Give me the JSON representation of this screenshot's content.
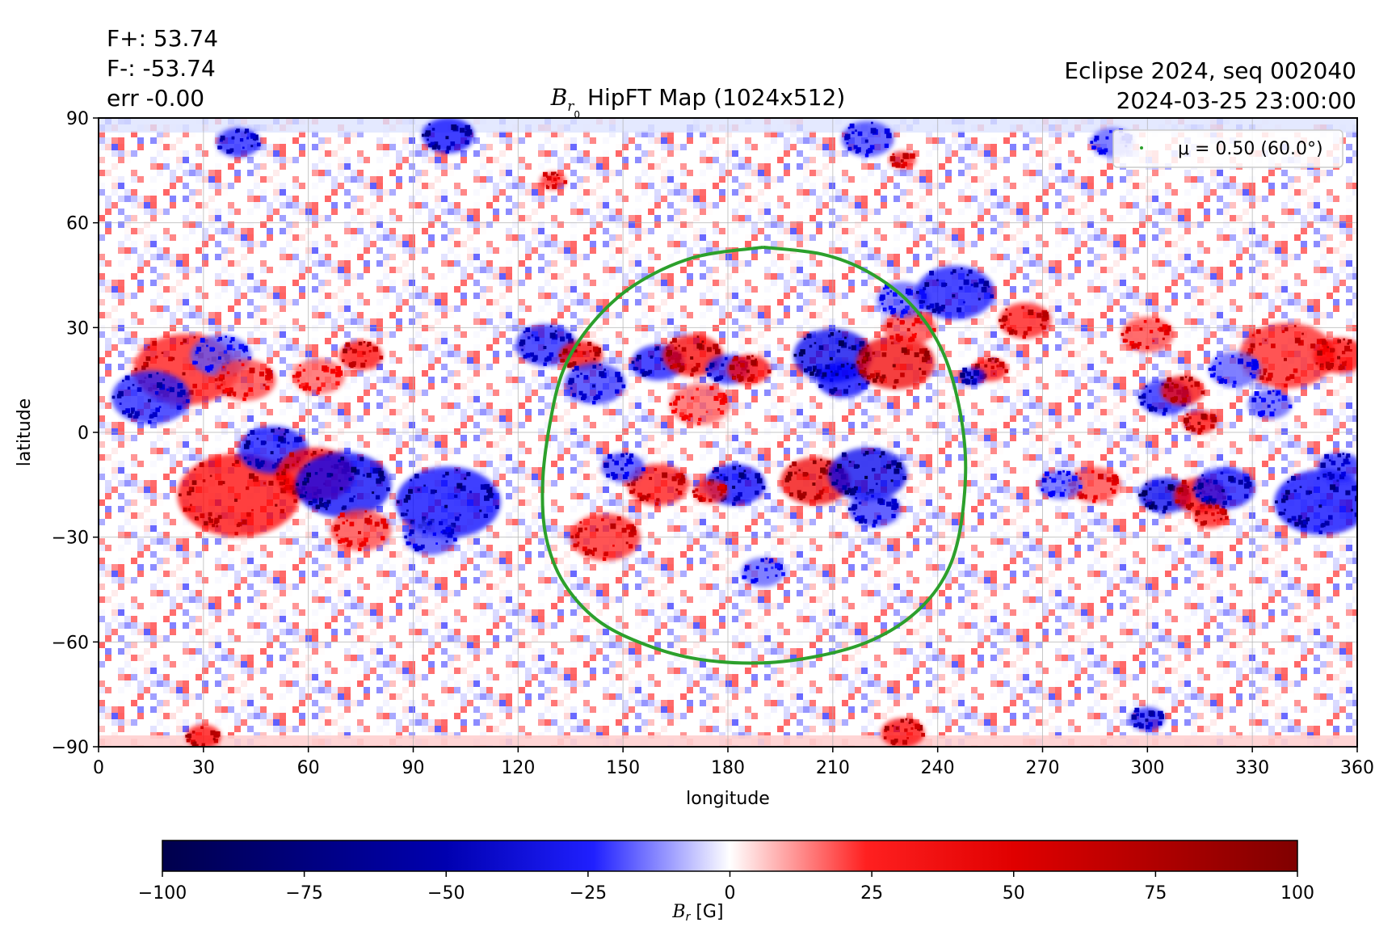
{
  "header": {
    "stats": [
      "F+: 53.74",
      "F-: -53.74",
      "err -0.00"
    ],
    "run_info": [
      "Eclipse 2024, seq 002040",
      "2024-03-25 23:00:00"
    ],
    "title_symbol": "B",
    "title_sub": "r",
    "title_sub2": "0",
    "title_text": " HipFT Map (1024x512)"
  },
  "chart_data": {
    "type": "heatmap",
    "xlabel": "longitude",
    "ylabel": "latitude",
    "xlim": [
      0,
      360
    ],
    "ylim": [
      -90,
      90
    ],
    "xticks": [
      0,
      30,
      60,
      90,
      120,
      150,
      180,
      210,
      240,
      270,
      300,
      330,
      360
    ],
    "yticks": [
      -90,
      -60,
      -30,
      0,
      30,
      60,
      90
    ],
    "grid": true,
    "legend": {
      "placement": "top-right",
      "label": "μ = 0.50 (60.0°)",
      "color": "#2ca02c"
    },
    "mu_contour": {
      "color": "#2ca02c",
      "points": [
        [
          190,
          53
        ],
        [
          207,
          51
        ],
        [
          220,
          46
        ],
        [
          232,
          37
        ],
        [
          241,
          24
        ],
        [
          246,
          8
        ],
        [
          248,
          -10
        ],
        [
          246,
          -30
        ],
        [
          241,
          -43
        ],
        [
          232,
          -53
        ],
        [
          220,
          -60
        ],
        [
          206,
          -64
        ],
        [
          190,
          -66
        ],
        [
          172,
          -65
        ],
        [
          157,
          -61
        ],
        [
          143,
          -54
        ],
        [
          133,
          -43
        ],
        [
          128,
          -30
        ],
        [
          127,
          -15
        ],
        [
          129,
          2
        ],
        [
          133,
          18
        ],
        [
          141,
          31
        ],
        [
          153,
          42
        ],
        [
          170,
          50
        ],
        [
          190,
          53
        ]
      ]
    },
    "colorbar": {
      "min": -100,
      "max": 100,
      "ticks": [
        -100,
        -75,
        -50,
        -25,
        0,
        25,
        50,
        75,
        100
      ],
      "label_symbol": "B",
      "label_sub": "r",
      "label_unit": " [G]",
      "colormap": "seismic"
    },
    "active_regions": [
      {
        "lon": 25,
        "lat": 18,
        "value": 85,
        "size": 24
      },
      {
        "lon": 15,
        "lat": 10,
        "value": -80,
        "size": 18
      },
      {
        "lon": 35,
        "lat": 22,
        "value": -60,
        "size": 14
      },
      {
        "lon": 42,
        "lat": 15,
        "value": 70,
        "size": 14
      },
      {
        "lon": 75,
        "lat": 22,
        "value": 90,
        "size": 10
      },
      {
        "lon": 63,
        "lat": 16,
        "value": 60,
        "size": 12
      },
      {
        "lon": 40,
        "lat": -18,
        "value": 90,
        "size": 28
      },
      {
        "lon": 50,
        "lat": -5,
        "value": -85,
        "size": 16
      },
      {
        "lon": 62,
        "lat": -12,
        "value": 90,
        "size": 18
      },
      {
        "lon": 70,
        "lat": -15,
        "value": -95,
        "size": 22
      },
      {
        "lon": 75,
        "lat": -28,
        "value": 70,
        "size": 14
      },
      {
        "lon": 100,
        "lat": -20,
        "value": -90,
        "size": 24
      },
      {
        "lon": 95,
        "lat": -30,
        "value": -70,
        "size": 12
      },
      {
        "lon": 128,
        "lat": 25,
        "value": -80,
        "size": 14
      },
      {
        "lon": 138,
        "lat": 22,
        "value": 95,
        "size": 10
      },
      {
        "lon": 142,
        "lat": 14,
        "value": -75,
        "size": 14
      },
      {
        "lon": 160,
        "lat": 20,
        "value": -85,
        "size": 12
      },
      {
        "lon": 170,
        "lat": 22,
        "value": 95,
        "size": 14
      },
      {
        "lon": 180,
        "lat": 18,
        "value": -80,
        "size": 10
      },
      {
        "lon": 186,
        "lat": 18,
        "value": 90,
        "size": 10
      },
      {
        "lon": 172,
        "lat": 8,
        "value": 60,
        "size": 14
      },
      {
        "lon": 210,
        "lat": 22,
        "value": -100,
        "size": 18
      },
      {
        "lon": 213,
        "lat": 15,
        "value": -90,
        "size": 12
      },
      {
        "lon": 228,
        "lat": 20,
        "value": 100,
        "size": 18
      },
      {
        "lon": 232,
        "lat": 30,
        "value": 70,
        "size": 12
      },
      {
        "lon": 160,
        "lat": -15,
        "value": 85,
        "size": 14
      },
      {
        "lon": 150,
        "lat": -10,
        "value": -70,
        "size": 10
      },
      {
        "lon": 145,
        "lat": -30,
        "value": 80,
        "size": 16
      },
      {
        "lon": 182,
        "lat": -15,
        "value": -90,
        "size": 14
      },
      {
        "lon": 175,
        "lat": -17,
        "value": 80,
        "size": 8
      },
      {
        "lon": 205,
        "lat": -14,
        "value": 100,
        "size": 16
      },
      {
        "lon": 220,
        "lat": -12,
        "value": -100,
        "size": 18
      },
      {
        "lon": 222,
        "lat": -22,
        "value": -75,
        "size": 12
      },
      {
        "lon": 190,
        "lat": -40,
        "value": -60,
        "size": 10
      },
      {
        "lon": 230,
        "lat": 38,
        "value": -60,
        "size": 12
      },
      {
        "lon": 245,
        "lat": 40,
        "value": -85,
        "size": 18
      },
      {
        "lon": 265,
        "lat": 32,
        "value": 85,
        "size": 12
      },
      {
        "lon": 255,
        "lat": 18,
        "value": 90,
        "size": 8
      },
      {
        "lon": 250,
        "lat": 16,
        "value": -90,
        "size": 6
      },
      {
        "lon": 305,
        "lat": 10,
        "value": -80,
        "size": 12
      },
      {
        "lon": 310,
        "lat": 12,
        "value": 95,
        "size": 10
      },
      {
        "lon": 315,
        "lat": 3,
        "value": 90,
        "size": 8
      },
      {
        "lon": 300,
        "lat": 28,
        "value": 70,
        "size": 12
      },
      {
        "lon": 340,
        "lat": 22,
        "value": 80,
        "size": 22
      },
      {
        "lon": 355,
        "lat": 22,
        "value": 90,
        "size": 12
      },
      {
        "lon": 325,
        "lat": 18,
        "value": -60,
        "size": 12
      },
      {
        "lon": 335,
        "lat": 8,
        "value": -60,
        "size": 10
      },
      {
        "lon": 305,
        "lat": -18,
        "value": -100,
        "size": 12
      },
      {
        "lon": 315,
        "lat": -18,
        "value": 90,
        "size": 12
      },
      {
        "lon": 322,
        "lat": -16,
        "value": -85,
        "size": 14
      },
      {
        "lon": 318,
        "lat": -24,
        "value": 85,
        "size": 8
      },
      {
        "lon": 350,
        "lat": -20,
        "value": -90,
        "size": 22
      },
      {
        "lon": 355,
        "lat": -10,
        "value": -80,
        "size": 10
      },
      {
        "lon": 285,
        "lat": -15,
        "value": 70,
        "size": 12
      },
      {
        "lon": 275,
        "lat": -15,
        "value": -60,
        "size": 10
      },
      {
        "lon": 100,
        "lat": 85,
        "value": -90,
        "size": 12
      },
      {
        "lon": 40,
        "lat": 83,
        "value": -80,
        "size": 10
      },
      {
        "lon": 220,
        "lat": 84,
        "value": -70,
        "size": 12
      },
      {
        "lon": 290,
        "lat": 83,
        "value": -60,
        "size": 10
      },
      {
        "lon": 130,
        "lat": 72,
        "value": 80,
        "size": 6
      },
      {
        "lon": 230,
        "lat": 78,
        "value": 80,
        "size": 6
      },
      {
        "lon": 30,
        "lat": -87,
        "value": 90,
        "size": 8
      },
      {
        "lon": 230,
        "lat": -86,
        "value": 90,
        "size": 10
      },
      {
        "lon": 300,
        "lat": -82,
        "value": -80,
        "size": 8
      }
    ]
  }
}
